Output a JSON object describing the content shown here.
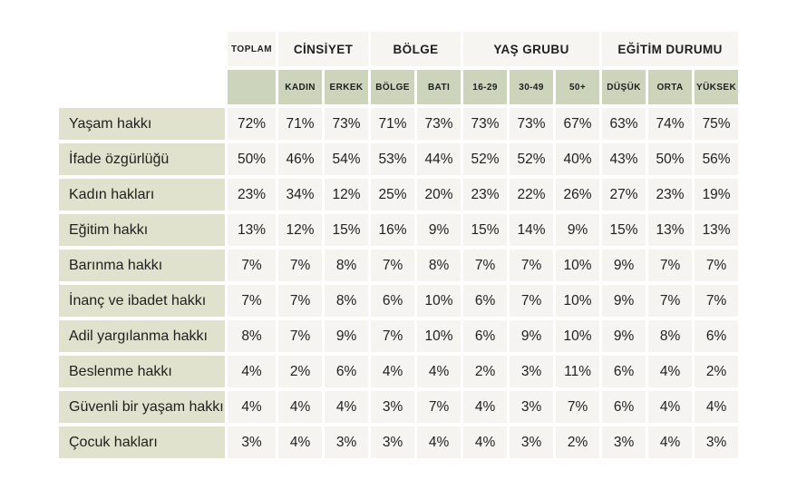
{
  "colors": {
    "group_header_bg": "#f6f5f1",
    "sub_header_bg": "#ccd4bc",
    "row_label_bg": "#e0e2cd",
    "data_cell_bg": "#f5f4f1",
    "text": "#1f1f1f",
    "page_bg": "#ffffff"
  },
  "chart_data": {
    "type": "table",
    "title": "",
    "legend_position": "none",
    "column_groups": [
      {
        "label": "TOPLAM",
        "columns": [
          ""
        ]
      },
      {
        "label": "CİNSİYET",
        "columns": [
          "KADIN",
          "ERKEK"
        ]
      },
      {
        "label": "BÖLGE",
        "columns": [
          "BÖLGE",
          "BATI"
        ]
      },
      {
        "label": "YAŞ GRUBU",
        "columns": [
          "16-29",
          "30-49",
          "50+"
        ]
      },
      {
        "label": "EĞİTİM DURUMU",
        "columns": [
          "DÜŞÜK",
          "ORTA",
          "YÜKSEK"
        ]
      }
    ],
    "flat_columns": [
      "TOPLAM",
      "KADIN",
      "ERKEK",
      "BÖLGE",
      "BATI",
      "16-29",
      "30-49",
      "50+",
      "DÜŞÜK",
      "ORTA",
      "YÜKSEK"
    ],
    "rows": [
      {
        "label": "Yaşam hakkı",
        "values": [
          "72%",
          "71%",
          "73%",
          "71%",
          "73%",
          "73%",
          "73%",
          "67%",
          "63%",
          "74%",
          "75%"
        ]
      },
      {
        "label": "İfade özgürlüğü",
        "values": [
          "50%",
          "46%",
          "54%",
          "53%",
          "44%",
          "52%",
          "52%",
          "40%",
          "43%",
          "50%",
          "56%"
        ]
      },
      {
        "label": "Kadın hakları",
        "values": [
          "23%",
          "34%",
          "12%",
          "25%",
          "20%",
          "23%",
          "22%",
          "26%",
          "27%",
          "23%",
          "19%"
        ]
      },
      {
        "label": "Eğitim hakkı",
        "values": [
          "13%",
          "12%",
          "15%",
          "16%",
          "9%",
          "15%",
          "14%",
          "9%",
          "15%",
          "13%",
          "13%"
        ]
      },
      {
        "label": "Barınma hakkı",
        "values": [
          "7%",
          "7%",
          "8%",
          "7%",
          "8%",
          "7%",
          "7%",
          "10%",
          "9%",
          "7%",
          "7%"
        ]
      },
      {
        "label": "İnanç ve ibadet hakkı",
        "values": [
          "7%",
          "7%",
          "8%",
          "6%",
          "10%",
          "6%",
          "7%",
          "10%",
          "9%",
          "7%",
          "7%"
        ]
      },
      {
        "label": "Adil yargılanma hakkı",
        "values": [
          "8%",
          "7%",
          "9%",
          "7%",
          "10%",
          "6%",
          "9%",
          "10%",
          "9%",
          "8%",
          "6%"
        ]
      },
      {
        "label": "Beslenme hakkı",
        "values": [
          "4%",
          "2%",
          "6%",
          "4%",
          "4%",
          "2%",
          "3%",
          "11%",
          "6%",
          "4%",
          "2%"
        ]
      },
      {
        "label": "Güvenli bir yaşam hakkı",
        "values": [
          "4%",
          "4%",
          "4%",
          "3%",
          "7%",
          "4%",
          "3%",
          "7%",
          "6%",
          "4%",
          "4%"
        ]
      },
      {
        "label": "Çocuk hakları",
        "values": [
          "3%",
          "4%",
          "3%",
          "3%",
          "4%",
          "4%",
          "3%",
          "2%",
          "3%",
          "4%",
          "3%"
        ]
      }
    ]
  }
}
